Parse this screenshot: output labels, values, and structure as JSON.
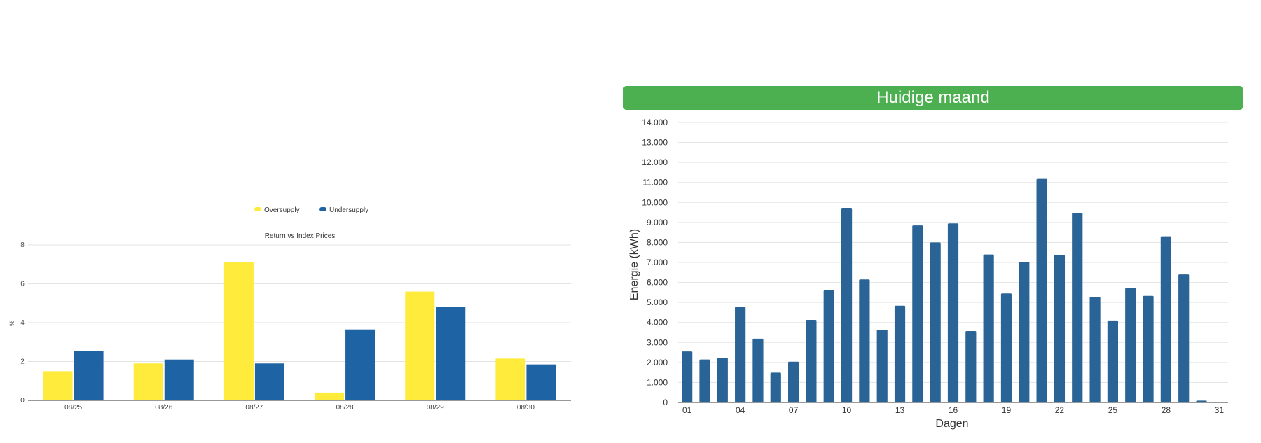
{
  "left": {
    "legend": [
      {
        "name": "Oversupply",
        "color": "#ffeb3b"
      },
      {
        "name": "Undersupply",
        "color": "#1e63a3"
      }
    ],
    "chart_data": {
      "type": "bar",
      "title": "Return vs Index Prices",
      "ylabel": "%",
      "xlabel": "",
      "categories": [
        "08/25",
        "08/26",
        "08/27",
        "08/28",
        "08/29",
        "08/30"
      ],
      "series": [
        {
          "name": "Oversupply",
          "values": [
            1.5,
            1.9,
            7.1,
            0.4,
            5.6,
            2.15
          ]
        },
        {
          "name": "Undersupply",
          "values": [
            2.55,
            2.1,
            1.9,
            3.65,
            4.8,
            1.85
          ]
        }
      ],
      "ylim": [
        0,
        8
      ],
      "yticks": [
        0,
        2,
        4,
        6,
        8
      ],
      "grid": true
    }
  },
  "right": {
    "header": "Huidige maand",
    "chart_data": {
      "type": "bar",
      "title": "",
      "ylabel": "Energie (kWh)",
      "xlabel": "Dagen",
      "categories": [
        "01",
        "02",
        "03",
        "04",
        "05",
        "06",
        "07",
        "08",
        "09",
        "10",
        "11",
        "12",
        "13",
        "14",
        "15",
        "16",
        "17",
        "18",
        "19",
        "20",
        "21",
        "22",
        "23",
        "24",
        "25",
        "26",
        "27",
        "28",
        "29",
        "30",
        "31"
      ],
      "values": [
        2550,
        2150,
        2230,
        4780,
        3190,
        1490,
        2040,
        4130,
        5610,
        9730,
        6150,
        3640,
        4840,
        8850,
        8000,
        8950,
        3570,
        7400,
        5450,
        7030,
        11180,
        7370,
        9480,
        5270,
        4100,
        5720,
        5330,
        8310,
        6400,
        90,
        0
      ],
      "x_tick_labels": [
        "01",
        "04",
        "07",
        "10",
        "13",
        "16",
        "19",
        "22",
        "25",
        "28",
        "31"
      ],
      "ylim": [
        0,
        14000
      ],
      "yticks": [
        "0",
        "1.000",
        "2.000",
        "3.000",
        "4.000",
        "5.000",
        "6.000",
        "7.000",
        "8.000",
        "9.000",
        "10.000",
        "11.000",
        "12.000",
        "13.000",
        "14.000"
      ],
      "bar_color": "#2a6496",
      "grid": true
    }
  }
}
